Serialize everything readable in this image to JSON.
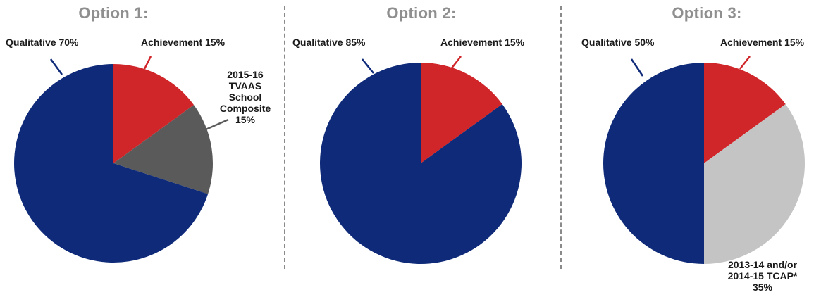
{
  "chart_data": [
    {
      "type": "pie",
      "title": "Option 1:",
      "slices": [
        {
          "label": "Achievement 15%",
          "value": 15,
          "color": "#d0262a"
        },
        {
          "label": "2015-16 TVAAS School Composite 15%",
          "label_lines": [
            "2015-16",
            "TVAAS",
            "School",
            "Composite",
            "15%"
          ],
          "value": 15,
          "color": "#5a5a5a"
        },
        {
          "label": "Qualitative 70%",
          "value": 70,
          "color": "#0e2a78"
        }
      ]
    },
    {
      "type": "pie",
      "title": "Option 2:",
      "slices": [
        {
          "label": "Achievement 15%",
          "value": 15,
          "color": "#d0262a"
        },
        {
          "label": "Qualitative 85%",
          "value": 85,
          "color": "#0e2a78"
        }
      ]
    },
    {
      "type": "pie",
      "title": "Option 3:",
      "slices": [
        {
          "label": "Achievement 15%",
          "value": 15,
          "color": "#d0262a"
        },
        {
          "label": "2013-14 and/or 2014-15 TCAP* 35%",
          "label_lines": [
            "2013-14 and/or",
            "2014-15 TCAP*",
            "35%"
          ],
          "value": 35,
          "color": "#c4c4c4"
        },
        {
          "label": "Qualitative 50%",
          "value": 50,
          "color": "#0e2a78"
        }
      ]
    }
  ],
  "colors": {
    "navy": "#0e2a78",
    "red": "#d0262a",
    "dark_gray": "#5a5a5a",
    "light_gray": "#c4c4c4",
    "title_gray": "#8f8f8f"
  }
}
